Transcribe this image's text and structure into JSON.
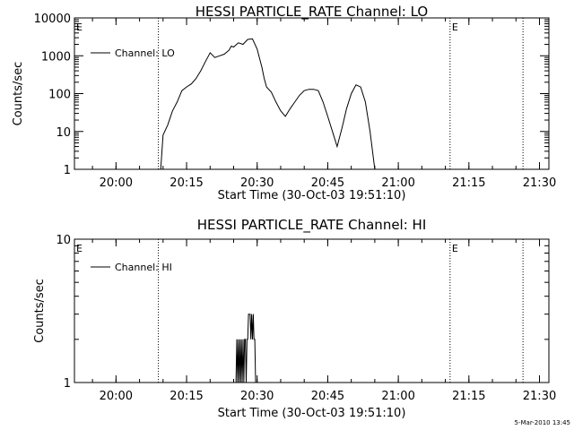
{
  "chart_data": [
    {
      "type": "line",
      "title": "HESSI PARTICLE_RATE Channel: LO",
      "xlabel": "Start Time (30-Oct-03 19:51:10)",
      "ylabel": "Counts/sec",
      "yscale": "log",
      "xlim": [
        "19:51:10",
        "21:32:00"
      ],
      "ylim": [
        1,
        10000
      ],
      "xticks": [
        "20:00",
        "20:15",
        "20:30",
        "20:45",
        "21:00",
        "21:15",
        "21:30"
      ],
      "yticks": [
        "1",
        "10",
        "100",
        "1000",
        "10000"
      ],
      "legend": "top-left",
      "grid": false,
      "markers": [
        {
          "label": "E",
          "time": "19:51:10",
          "line": false
        },
        {
          "label": "",
          "time": "20:09:00",
          "line": true
        },
        {
          "label": "E",
          "time": "21:11:00",
          "line": true
        },
        {
          "label": "",
          "time": "21:26:30",
          "line": true
        }
      ],
      "series": [
        {
          "name": "Channel: LO",
          "x": [
            "20:09:30",
            "20:10:00",
            "20:11:00",
            "20:12:00",
            "20:13:00",
            "20:14:00",
            "20:15:00",
            "20:16:00",
            "20:17:00",
            "20:18:00",
            "20:19:00",
            "20:20:00",
            "20:21:00",
            "20:22:00",
            "20:23:00",
            "20:24:00",
            "20:24:30",
            "20:25:00",
            "20:26:00",
            "20:27:00",
            "20:28:00",
            "20:29:00",
            "20:30:00",
            "20:31:00",
            "20:31:30",
            "20:32:00",
            "20:33:00",
            "20:34:00",
            "20:35:00",
            "20:36:00",
            "20:37:00",
            "20:38:00",
            "20:39:00",
            "20:40:00",
            "20:41:00",
            "20:42:00",
            "20:43:00",
            "20:44:00",
            "20:45:00",
            "20:46:00",
            "20:47:00",
            "20:48:00",
            "20:49:00",
            "20:50:00",
            "20:51:00",
            "20:52:00",
            "20:53:00",
            "20:54:00",
            "20:55:00",
            "20:56:00",
            "20:57:00",
            "20:58:00",
            "20:59:00"
          ],
          "values": [
            1,
            8,
            15,
            35,
            60,
            120,
            150,
            180,
            250,
            400,
            700,
            1200,
            900,
            1000,
            1100,
            1400,
            1800,
            1700,
            2200,
            2000,
            2700,
            2800,
            1500,
            500,
            250,
            150,
            110,
            60,
            35,
            25,
            40,
            60,
            90,
            120,
            130,
            130,
            120,
            60,
            25,
            10,
            4,
            12,
            40,
            100,
            170,
            150,
            60,
            10,
            1,
            1,
            1,
            1,
            1
          ]
        }
      ]
    },
    {
      "type": "line",
      "title": "HESSI PARTICLE_RATE Channel: HI",
      "xlabel": "Start Time (30-Oct-03 19:51:10)",
      "ylabel": "Counts/sec",
      "yscale": "log",
      "xlim": [
        "19:51:10",
        "21:32:00"
      ],
      "ylim": [
        1,
        10
      ],
      "xticks": [
        "20:00",
        "20:15",
        "20:30",
        "20:45",
        "21:00",
        "21:15",
        "21:30"
      ],
      "yticks": [
        "1",
        "10"
      ],
      "legend": "top-left",
      "grid": false,
      "markers": [
        {
          "label": "E",
          "time": "19:51:10",
          "line": false
        },
        {
          "label": "",
          "time": "20:09:00",
          "line": true
        },
        {
          "label": "E",
          "time": "21:11:00",
          "line": true
        },
        {
          "label": "",
          "time": "21:26:30",
          "line": true
        }
      ],
      "series": [
        {
          "name": "Channel: HI",
          "x": [
            "20:25:30",
            "20:25:40",
            "20:25:50",
            "20:26:00",
            "20:26:10",
            "20:26:20",
            "20:26:30",
            "20:26:40",
            "20:26:50",
            "20:27:00",
            "20:27:10",
            "20:27:20",
            "20:27:30",
            "20:27:40",
            "20:27:50",
            "20:28:00",
            "20:28:10",
            "20:28:20",
            "20:28:30",
            "20:28:40",
            "20:28:50",
            "20:29:00",
            "20:29:10",
            "20:29:20",
            "20:29:30",
            "20:29:40",
            "20:29:50",
            "20:30:00"
          ],
          "values": [
            1,
            2,
            1,
            2,
            1,
            2,
            1,
            2,
            1,
            2,
            1,
            2,
            2,
            1,
            2,
            2,
            3,
            3,
            3,
            2,
            3,
            2,
            3,
            2,
            2,
            1,
            1,
            1
          ]
        }
      ]
    }
  ],
  "timestamp": "5-Mar-2010 13:45"
}
